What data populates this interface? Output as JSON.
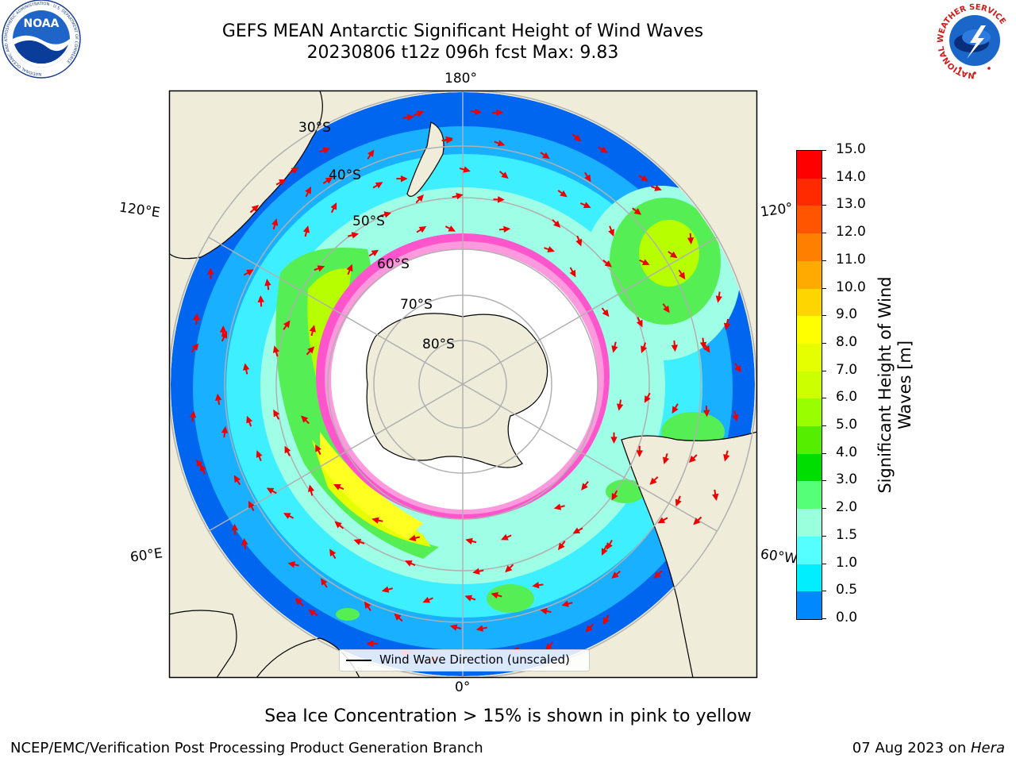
{
  "header": {
    "title_line1": "GEFS MEAN Antarctic Significant Height of Wind Waves",
    "title_line2": "20230806 t12z 096h fcst   Max: 9.83"
  },
  "logos": {
    "noara_left": "NOAA",
    "noaa_ring_text": "NATIONAL OCEANIC AND ATMOSPHERIC ADMINISTRATION · U.S. DEPARTMENT OF COMMERCE",
    "nws_ring_text": "NATIONAL WEATHER SERVICE"
  },
  "map": {
    "projection": "south-polar-stereographic",
    "lon_labels": [
      "180°",
      "120°E",
      "120°",
      "60°E",
      "60°W",
      "0°"
    ],
    "lat_labels": [
      "30°S",
      "40°S",
      "50°S",
      "60°S",
      "70°S",
      "80°S"
    ],
    "legend_entry": "Wind Wave Direction (unscaled)",
    "colors": {
      "land": "#efedda",
      "arrows": "#ee0000",
      "grid": "#b0b0b0"
    }
  },
  "colorbar": {
    "label": "Significant Height of Wind Waves [m]",
    "label_line1": "Significant Height of Wind",
    "label_line2": "Waves [m]",
    "ticks": [
      "15.0",
      "14.0",
      "13.0",
      "12.0",
      "11.0",
      "10.0",
      "9.0",
      "8.0",
      "7.0",
      "6.0",
      "5.0",
      "4.0",
      "3.0",
      "2.0",
      "1.5",
      "1.0",
      "0.5",
      "0.0"
    ],
    "colors": [
      "#ff0000",
      "#ff2a00",
      "#ff5500",
      "#ff8000",
      "#ffaa00",
      "#ffd500",
      "#ffff00",
      "#e6ff00",
      "#ccff00",
      "#99ff00",
      "#55ee00",
      "#00dd00",
      "#55ff77",
      "#99ffdd",
      "#55ffff",
      "#00eeff",
      "#0088ff",
      "#0000ff"
    ]
  },
  "note": "Sea Ice Concentration > 15% is shown in pink to yellow",
  "footer": {
    "left": "NCEP/EMC/Verification Post Processing Product Generation Branch",
    "right_date": "07 Aug 2023 on ",
    "right_host": "Hera"
  }
}
